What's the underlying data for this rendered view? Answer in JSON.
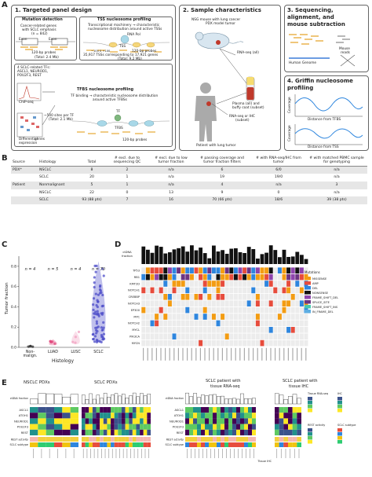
{
  "panelA": {
    "letter": "A",
    "box1": {
      "title": "1. Targeted panel design",
      "mutation_title": "Mutation detection",
      "mutation_desc1": "Cancer-related genes",
      "mutation_desc2": "with SCLC emphasis",
      "mutation_n": "(n = 842)",
      "exon_label": "Exon",
      "probes_label": "120-bp probes",
      "mutation_total": "(Total: 2.4 Mb)",
      "tss_title": "TSS nucleosome profiling",
      "tss_desc1": "Transcriptional machinery → characteristic",
      "tss_desc2": "nucleosome distribution around active TSSs",
      "rna_pol": "RNA Pol",
      "tss_label": "TSS",
      "tss_axis": "−100          0          +100",
      "tss_probes": "120-bp probes",
      "tss_count1": "35,917 TSSs corresponding to 17,921 genes",
      "tss_count2": "(Total: 9.2 Mb)",
      "tfbs_title": "TFBS nucleosome profiling",
      "tfbs_desc1": "TF binding → characteristic nucleosome distribution",
      "tfbs_desc2": "around active TFBSs",
      "tf_label": "TF",
      "tfbs_label": "TFBS",
      "tfbs_probes": "120-bp probes",
      "sclc_tfs1": "4 SCLC-related TFs:",
      "sclc_tfs2": "ASCL1, NEUROD1,",
      "sclc_tfs3": "POU2F3, REST",
      "chip_label": "ChIP-seq",
      "sites_label1": "~500 sites per TF",
      "sites_label2": "(Total: 2.1 Mb)",
      "diff_label1": "Differential",
      "diff_label2": "genes",
      "diff_label3": "expression"
    },
    "box2": {
      "title": "2. Sample characteristics",
      "nsg1": "NSG mouse with lung cancer",
      "nsg2": "PDX model tumor",
      "rnaseq_all": "RNA-seq (all)",
      "plasma1": "Plasma (all) and",
      "plasma2": "buffy coat (subset)",
      "rnaseq_ihc1": "RNA-seq or IHC",
      "rnaseq_ihc2": "(subset)",
      "patient": "Patient with lung tumor"
    },
    "box3": {
      "title1": "3. Sequencing,",
      "title2": "alignment, and",
      "title3": "mouse subtraction",
      "mouse_reads1": "Mouse",
      "mouse_reads2": "reads",
      "human_genome": "Human Genome"
    },
    "box4": {
      "title1": "4. Griffin nucleosome",
      "title2": "profiling",
      "coverage": "Coverage",
      "dist_tfbs": "Distance from TFBS",
      "dist_tss": "Distance from TSS"
    }
  },
  "panelB": {
    "letter": "B",
    "headers": [
      "Source",
      "Histology",
      "Total",
      "# excl. due to sequencing QC",
      "# excl. due to low tumor fraction",
      "# passing coverage and tumor fraction filters",
      "# with RNA-seq/IHC from tumor",
      "# with matched PBMC sample for genotyping"
    ],
    "rows": [
      {
        "source": "PDX*",
        "histology": "NSCLC",
        "total": "8",
        "qc": "2",
        "low": "n/a",
        "pass": "6",
        "rna": "6/0",
        "pbmc": "n/a",
        "shade": true
      },
      {
        "source": "",
        "histology": "SCLC",
        "total": "20",
        "qc": "1",
        "low": "n/a",
        "pass": "19",
        "rna": "19/0",
        "pbmc": "n/a",
        "shade": false
      },
      {
        "source": "Patient",
        "histology": "Nonmalignant",
        "total": "5",
        "qc": "1",
        "low": "n/a",
        "pass": "4",
        "rna": "n/a",
        "pbmc": "3",
        "shade": true
      },
      {
        "source": "",
        "histology": "NSCLC",
        "total": "22",
        "qc": "0",
        "low": "13",
        "pass": "9",
        "rna": "0",
        "pbmc": "n/a",
        "shade": false
      },
      {
        "source": "",
        "histology": "SCLC",
        "total": "93 (88 pts)",
        "qc": "7",
        "low": "16",
        "pass": "70 (66 pts)",
        "rna": "18/6",
        "pbmc": "39 (38 pts)",
        "shade": true
      }
    ]
  },
  "panelC": {
    "letter": "C",
    "ylabel": "Tumor fraction",
    "xlabel": "Histology",
    "chart_data": {
      "type": "scatter",
      "categories": [
        "Non-malign.",
        "LUAD",
        "LUSC",
        "SCLC"
      ],
      "n_labels": [
        "n = 4",
        "n = 5",
        "n = 4",
        "n = 70"
      ],
      "yticks": [
        "0.0",
        "0.2",
        "0.4",
        "0.6",
        "0.8"
      ],
      "ylim": [
        0,
        0.9
      ],
      "colors": [
        "#333333",
        "#e0457b",
        "#f2a0c0",
        "#4b4bc8"
      ]
    }
  },
  "panelD": {
    "letter": "D",
    "ctdna_label1": "ctDNA",
    "ctdna_label2": "fraction",
    "genes": [
      "TP53",
      "RB1",
      "KMT2D",
      "NOTCH1",
      "CREBBP",
      "NOTCH3",
      "EP300",
      "MYC",
      "NOTCH2",
      "MYCL",
      "PIK3CA",
      "MYCN"
    ],
    "legend_title": "Mutations",
    "legend": [
      {
        "label": "MISSENSE",
        "color": "#f39c12"
      },
      {
        "label": "AMP",
        "color": "#e74c3c"
      },
      {
        "label": "DEL",
        "color": "#2e86de"
      },
      {
        "label": "NONSENSE",
        "color": "#111111"
      },
      {
        "label": "FRAME_SHIFT_DEL",
        "color": "#8e44ad"
      },
      {
        "label": "SPLICE_SITE",
        "color": "#6c3483"
      },
      {
        "label": "FRAME_SHIFT_INS",
        "color": "#48c9b0"
      },
      {
        "label": "IN_FRAME_DEL",
        "color": "#5dade2"
      }
    ]
  },
  "panelE": {
    "letter": "E",
    "nsclc_title": "NSCLC PDXs",
    "sclc_title": "SCLC PDXs",
    "rnaseq_title1": "SCLC patient with",
    "rnaseq_title2": "tissue RNA-seq",
    "ihc_title1": "SCLC patient with",
    "ihc_title2": "tissue IHC",
    "ctdna": "ctDNA fraction",
    "rows": [
      "ASCL1",
      "ATOH1",
      "NEUROD1",
      "POU2F3",
      "REST"
    ],
    "rest_activity": "REST activity",
    "sclc_subtype": "SCLC subtype",
    "tissue_rnaseq": "Tissue RNA-seq",
    "tissue_ihc": "Tissue IHC",
    "ihc_rows": [
      "ASCL1",
      "NEUROD1",
      "POU2F3"
    ],
    "legend_tissue": "Tissue RNA-seq",
    "legend_ihc": "IHC",
    "legend_rest": "REST activity",
    "legend_subtype": "SCLC subtype"
  }
}
